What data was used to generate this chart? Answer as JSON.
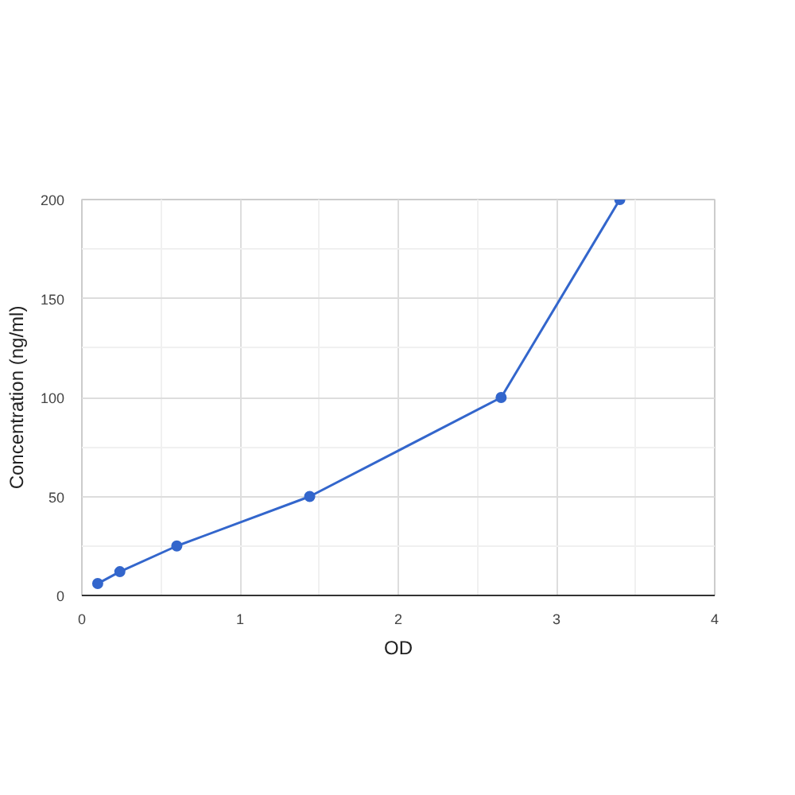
{
  "chart_data": {
    "type": "line",
    "xlabel": "OD",
    "ylabel": "Concentration (ng/ml)",
    "x": [
      0.1,
      0.24,
      0.6,
      1.44,
      2.65,
      3.4
    ],
    "series": [
      {
        "color": "#3366cc",
        "values": [
          6,
          12,
          25,
          50,
          100,
          200
        ]
      }
    ],
    "xlim": [
      0,
      4
    ],
    "xticks": [
      0,
      1,
      2,
      3,
      4
    ],
    "ylim": [
      0,
      200
    ],
    "yticks": [
      0,
      50,
      100,
      150,
      200
    ],
    "grid": true,
    "marker": "circle",
    "line_style": "solid"
  }
}
